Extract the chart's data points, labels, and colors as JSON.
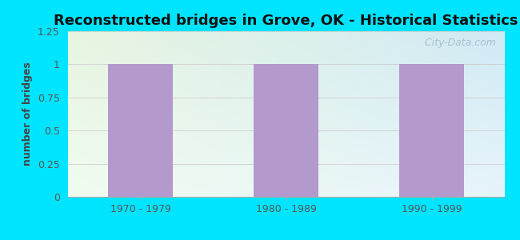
{
  "title": "Reconstructed bridges in Grove, OK - Historical Statistics",
  "categories": [
    "1970 - 1979",
    "1980 - 1989",
    "1990 - 1999"
  ],
  "values": [
    1,
    1,
    1
  ],
  "bar_color": "#b399cc",
  "ylim": [
    0,
    1.25
  ],
  "yticks": [
    0,
    0.25,
    0.5,
    0.75,
    1.0,
    1.25
  ],
  "ylabel": "number of bridges",
  "background_outer": "#00e5ff",
  "bg_top_left": "#e8f5e0",
  "bg_top_right": "#ddeef8",
  "bg_bottom": "#f0faf0",
  "title_fontsize": 13,
  "label_fontsize": 9,
  "tick_fontsize": 9,
  "watermark": " City-Data.com",
  "title_color": "#111111",
  "ylabel_color": "#444444",
  "tick_color": "#555555",
  "grid_color": "#cccccc"
}
